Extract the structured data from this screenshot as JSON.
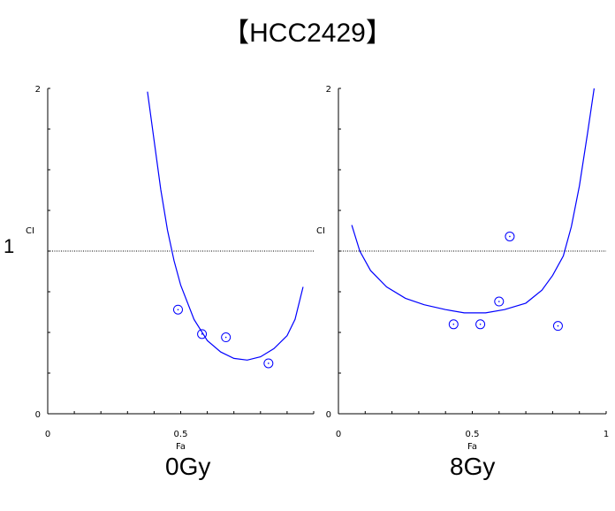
{
  "title": "【HCC2429】",
  "side_label": "1",
  "chart_data": [
    {
      "type": "scatter",
      "caption": "0Gy",
      "xlabel": "Fa",
      "ylabel": "CI",
      "xlim": [
        0,
        1
      ],
      "ylim": [
        0,
        2
      ],
      "x_ticks": [
        "0",
        "0.5"
      ],
      "y_ticks": [
        "0",
        "2"
      ],
      "reference_line_y": 1,
      "points": [
        {
          "x": 0.49,
          "y": 0.64
        },
        {
          "x": 0.58,
          "y": 0.49
        },
        {
          "x": 0.67,
          "y": 0.47
        },
        {
          "x": 0.83,
          "y": 0.31
        }
      ],
      "curve": [
        {
          "x": 0.375,
          "y": 1.98
        },
        {
          "x": 0.4,
          "y": 1.68
        },
        {
          "x": 0.425,
          "y": 1.38
        },
        {
          "x": 0.45,
          "y": 1.13
        },
        {
          "x": 0.475,
          "y": 0.94
        },
        {
          "x": 0.5,
          "y": 0.79
        },
        {
          "x": 0.55,
          "y": 0.58
        },
        {
          "x": 0.6,
          "y": 0.45
        },
        {
          "x": 0.65,
          "y": 0.38
        },
        {
          "x": 0.7,
          "y": 0.34
        },
        {
          "x": 0.75,
          "y": 0.33
        },
        {
          "x": 0.8,
          "y": 0.35
        },
        {
          "x": 0.85,
          "y": 0.4
        },
        {
          "x": 0.9,
          "y": 0.48
        },
        {
          "x": 0.93,
          "y": 0.58
        },
        {
          "x": 0.96,
          "y": 0.78
        }
      ],
      "colors": {
        "points": "#0000ff",
        "curve": "#0000ff",
        "reference": "#000000"
      }
    },
    {
      "type": "scatter",
      "caption": "8Gy",
      "xlabel": "Fa",
      "ylabel": "CI",
      "xlim": [
        0,
        1
      ],
      "ylim": [
        0,
        2
      ],
      "x_ticks": [
        "0",
        "0.5",
        "1"
      ],
      "y_ticks": [
        "0",
        "2"
      ],
      "reference_line_y": 1,
      "points": [
        {
          "x": 0.43,
          "y": 0.55
        },
        {
          "x": 0.53,
          "y": 0.55
        },
        {
          "x": 0.6,
          "y": 0.69
        },
        {
          "x": 0.64,
          "y": 1.09
        },
        {
          "x": 0.82,
          "y": 0.54
        }
      ],
      "curve": [
        {
          "x": 0.05,
          "y": 1.16
        },
        {
          "x": 0.08,
          "y": 1.0
        },
        {
          "x": 0.12,
          "y": 0.88
        },
        {
          "x": 0.18,
          "y": 0.78
        },
        {
          "x": 0.25,
          "y": 0.71
        },
        {
          "x": 0.32,
          "y": 0.67
        },
        {
          "x": 0.4,
          "y": 0.64
        },
        {
          "x": 0.47,
          "y": 0.62
        },
        {
          "x": 0.55,
          "y": 0.62
        },
        {
          "x": 0.62,
          "y": 0.64
        },
        {
          "x": 0.7,
          "y": 0.68
        },
        {
          "x": 0.76,
          "y": 0.76
        },
        {
          "x": 0.8,
          "y": 0.85
        },
        {
          "x": 0.84,
          "y": 0.97
        },
        {
          "x": 0.87,
          "y": 1.15
        },
        {
          "x": 0.9,
          "y": 1.4
        },
        {
          "x": 0.93,
          "y": 1.72
        },
        {
          "x": 0.955,
          "y": 2.0
        }
      ],
      "colors": {
        "points": "#0000ff",
        "curve": "#0000ff",
        "reference": "#000000"
      }
    }
  ]
}
